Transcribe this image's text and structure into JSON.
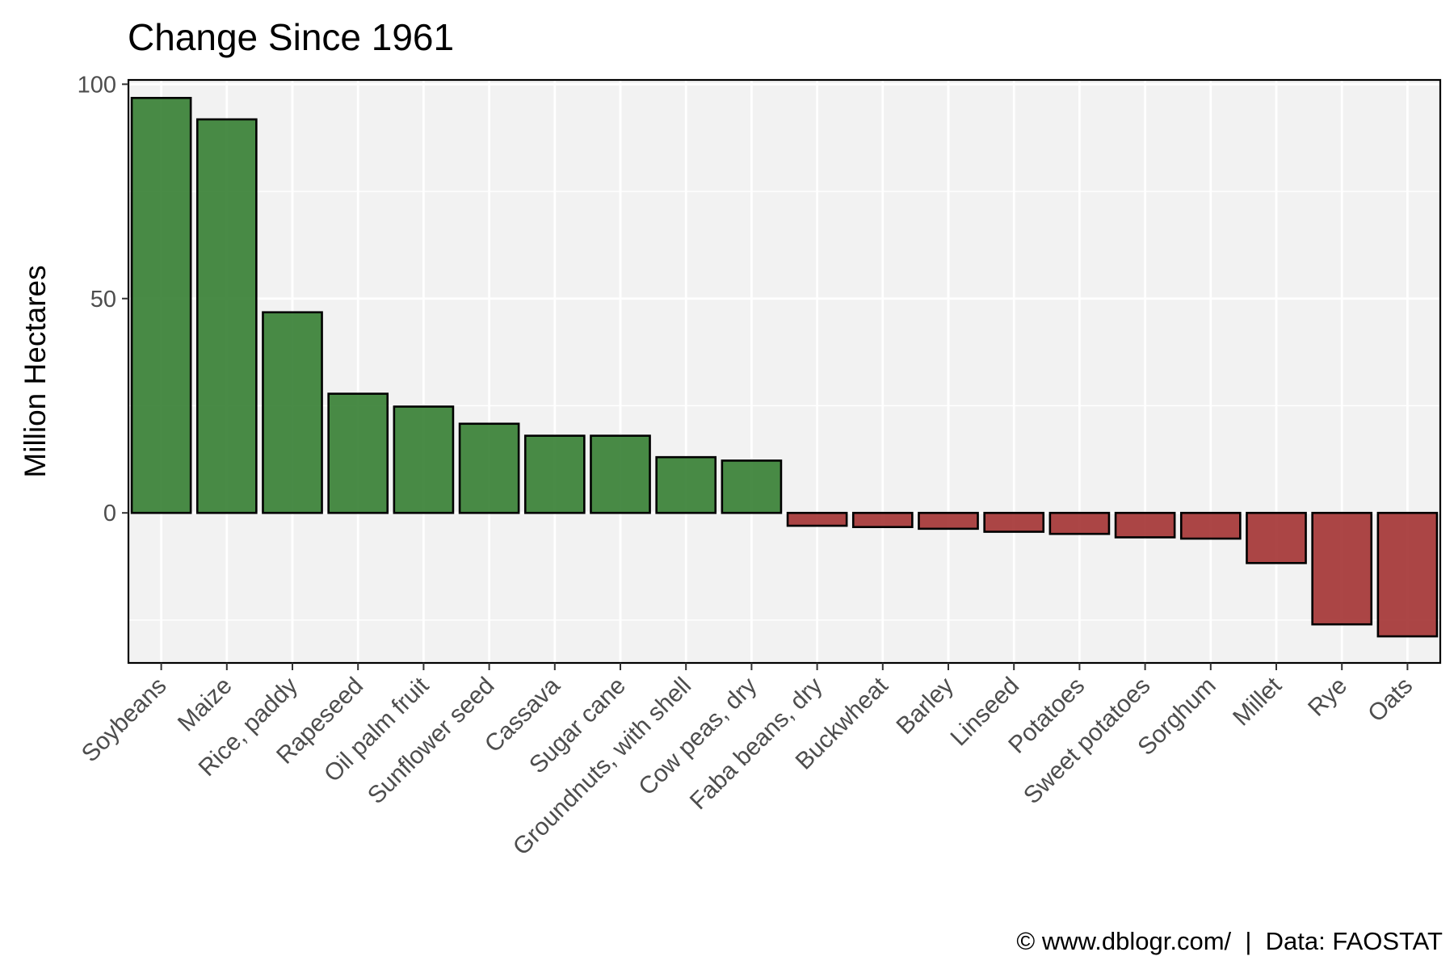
{
  "chart_data": {
    "type": "bar",
    "title": "Change Since 1961",
    "xlabel": "",
    "ylabel": "Million Hectares",
    "caption": "© www.dblogr.com/  |  Data: FAOSTAT",
    "categories": [
      "Soybeans",
      "Maize",
      "Rice, paddy",
      "Rapeseed",
      "Oil palm fruit",
      "Sunflower seed",
      "Cassava",
      "Sugar cane",
      "Groundnuts, with shell",
      "Cow peas, dry",
      "Faba beans, dry",
      "Buckwheat",
      "Barley",
      "Linseed",
      "Potatoes",
      "Sweet potatoes",
      "Sorghum",
      "Millet",
      "Rye",
      "Oats"
    ],
    "values": [
      96.8,
      91.8,
      46.8,
      27.8,
      24.8,
      20.8,
      18.0,
      18.0,
      13.0,
      12.2,
      -3.0,
      -3.3,
      -3.7,
      -4.4,
      -4.9,
      -5.7,
      -6.0,
      -11.7,
      -26.0,
      -28.8
    ],
    "ylim": [
      -35,
      101
    ],
    "yticks": [
      0,
      50,
      100
    ],
    "grid": true,
    "colors": {
      "positive": "#3a8136",
      "negative": "#a53636",
      "panel": "#f2f2f2",
      "grid": "#ffffff",
      "bar_outline": "#000000"
    }
  }
}
